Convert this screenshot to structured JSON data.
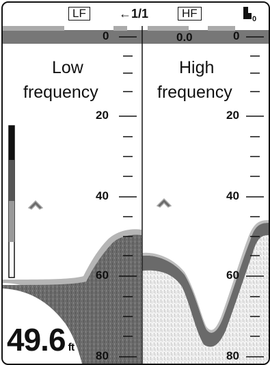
{
  "header": {
    "lf_label": "LF",
    "ratio_label": "←1/1",
    "hf_label": "HF",
    "hf_icon": "transducer-icon"
  },
  "panels": {
    "left": {
      "title_line1": "Low",
      "title_line2": "frequency"
    },
    "right": {
      "title_line1": "High",
      "title_line2": "frequency",
      "offset_readout": "0.0"
    }
  },
  "scale": {
    "labels": [
      "0",
      "20",
      "40",
      "60",
      "80"
    ]
  },
  "depth_readout": {
    "value": "49.6",
    "unit": "ft"
  },
  "colors": {
    "echo_dark": "#6a6a6a",
    "echo_light": "#b9b9b9",
    "band": "#777777"
  }
}
